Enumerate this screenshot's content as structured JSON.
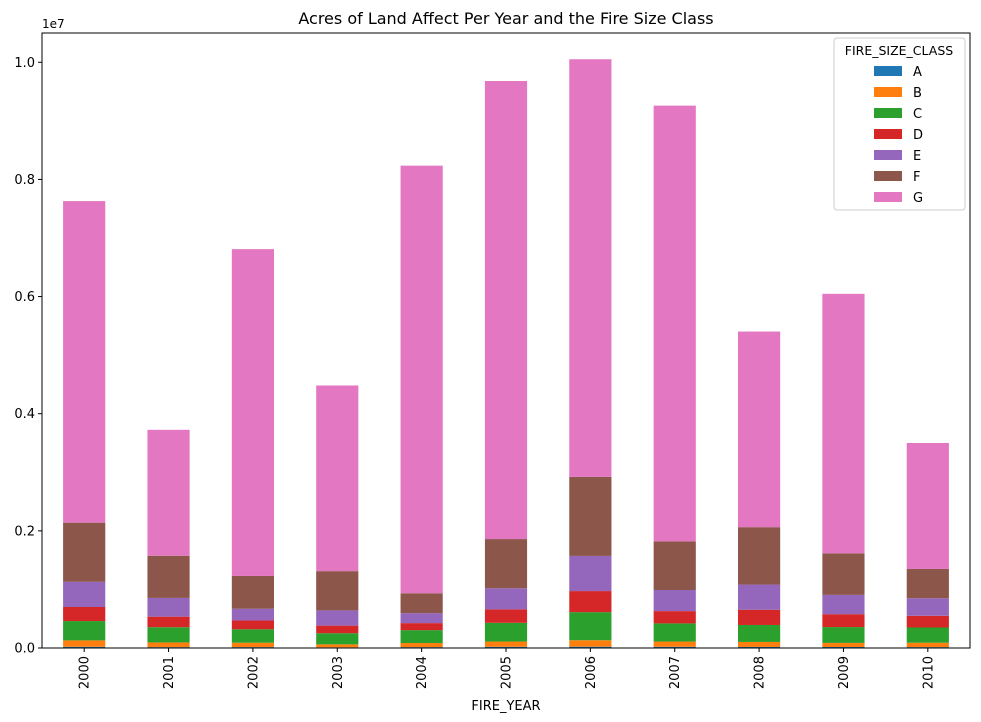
{
  "chart_data": {
    "type": "bar",
    "stacked": true,
    "title": "Acres of Land Affect Per Year and the Fire Size Class",
    "xlabel": "FIRE_YEAR",
    "ylabel": "",
    "y_offset_text": "1e7",
    "ylim": [
      0,
      10500000
    ],
    "yticks": [
      {
        "value": 0,
        "label": "0.0"
      },
      {
        "value": 2000000,
        "label": "0.2"
      },
      {
        "value": 4000000,
        "label": "0.4"
      },
      {
        "value": 6000000,
        "label": "0.6"
      },
      {
        "value": 8000000,
        "label": "0.8"
      },
      {
        "value": 10000000,
        "label": "1.0"
      }
    ],
    "categories": [
      "2000",
      "2001",
      "2002",
      "2003",
      "2004",
      "2005",
      "2006",
      "2007",
      "2008",
      "2009",
      "2010"
    ],
    "legend_title": "FIRE_SIZE_CLASS",
    "legend_position": "top-right",
    "grid": false,
    "series": [
      {
        "name": "A",
        "color": "#1f77b4",
        "values": [
          20000,
          15000,
          15000,
          12000,
          15000,
          20000,
          22000,
          20000,
          18000,
          17000,
          15000
        ]
      },
      {
        "name": "B",
        "color": "#ff7f0e",
        "values": [
          110000,
          80000,
          75000,
          50000,
          70000,
          90000,
          110000,
          90000,
          85000,
          70000,
          75000
        ]
      },
      {
        "name": "C",
        "color": "#2ca02c",
        "values": [
          330000,
          260000,
          230000,
          190000,
          220000,
          320000,
          480000,
          310000,
          290000,
          270000,
          260000
        ]
      },
      {
        "name": "D",
        "color": "#d62728",
        "values": [
          240000,
          180000,
          150000,
          130000,
          120000,
          230000,
          360000,
          210000,
          260000,
          220000,
          200000
        ]
      },
      {
        "name": "E",
        "color": "#9467bd",
        "values": [
          430000,
          320000,
          200000,
          260000,
          170000,
          360000,
          600000,
          360000,
          430000,
          330000,
          300000
        ]
      },
      {
        "name": "F",
        "color": "#8c564b",
        "values": [
          1010000,
          720000,
          560000,
          670000,
          340000,
          840000,
          1350000,
          830000,
          980000,
          710000,
          500000
        ]
      },
      {
        "name": "G",
        "color": "#e377c2",
        "values": [
          5490000,
          2150000,
          5580000,
          3170000,
          7300000,
          7820000,
          7130000,
          7440000,
          3340000,
          4430000,
          2150000
        ]
      }
    ]
  }
}
